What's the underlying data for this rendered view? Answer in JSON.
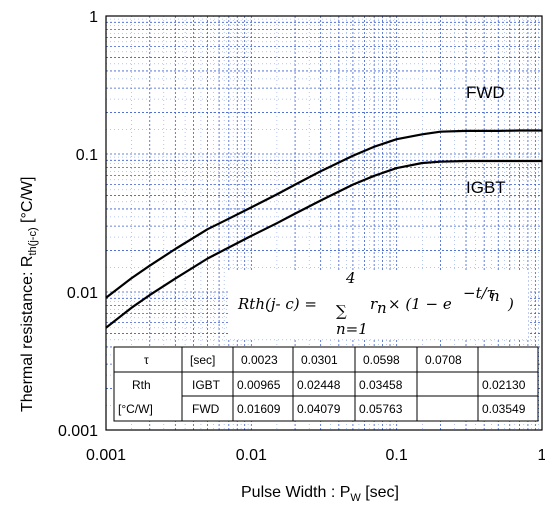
{
  "chart_data": {
    "type": "line",
    "x_scale": "log",
    "y_scale": "log",
    "xlim": [
      0.001,
      1
    ],
    "ylim": [
      0.001,
      1
    ],
    "grid": true,
    "xlabel": "Pulse Width : P",
    "xlabel_sub": "W",
    "xlabel_unit": " [sec]",
    "ylabel": "Thermal resistance: R",
    "ylabel_sub": "th(j-c)",
    "ylabel_unit": " [°C/W]",
    "x_ticks": [
      "0.001",
      "0.01",
      "0.1",
      "1"
    ],
    "y_ticks": [
      "0.001",
      "0.01",
      "0.1",
      "1"
    ],
    "series": [
      {
        "name": "FWD",
        "x": [
          0.001,
          0.0015,
          0.002,
          0.003,
          0.005,
          0.007,
          0.01,
          0.015,
          0.02,
          0.03,
          0.05,
          0.07,
          0.1,
          0.15,
          0.2,
          0.3,
          0.5,
          0.7,
          1.0
        ],
        "y": [
          0.0091,
          0.0126,
          0.0155,
          0.0205,
          0.0285,
          0.034,
          0.041,
          0.051,
          0.06,
          0.075,
          0.097,
          0.113,
          0.128,
          0.139,
          0.145,
          0.147,
          0.147,
          0.148,
          0.148
        ]
      },
      {
        "name": "IGBT",
        "x": [
          0.001,
          0.0015,
          0.002,
          0.003,
          0.005,
          0.007,
          0.01,
          0.015,
          0.02,
          0.03,
          0.05,
          0.07,
          0.1,
          0.15,
          0.2,
          0.3,
          0.5,
          0.7,
          1.0
        ],
        "y": [
          0.0055,
          0.0077,
          0.0095,
          0.0125,
          0.0175,
          0.021,
          0.0255,
          0.0315,
          0.037,
          0.046,
          0.06,
          0.0695,
          0.079,
          0.086,
          0.088,
          0.089,
          0.089,
          0.089,
          0.089
        ]
      }
    ],
    "annotations": {
      "formula_lhs": "Rth(j- c) =",
      "formula_sum_top": "4",
      "formula_sum_bottom": "n=1",
      "formula_rhs": "r",
      "formula_sub_n": "n",
      "formula_times": "× (1 − e",
      "formula_exp": "−t/τ",
      "formula_exp_sub": "n",
      "formula_close": ")"
    },
    "table": {
      "header": [
        "τ",
        "[sec]",
        "0.0023",
        "0.0301",
        "0.0598",
        "0.0708"
      ],
      "row_group_label_1": "Rth",
      "row_group_label_2": "[°C/W]",
      "rows": [
        {
          "name": "IGBT",
          "values": [
            "0.00965",
            "0.02448",
            "0.03458",
            "0.02130"
          ]
        },
        {
          "name": "FWD",
          "values": [
            "0.01609",
            "0.04079",
            "0.05763",
            "0.03549"
          ]
        }
      ]
    }
  }
}
